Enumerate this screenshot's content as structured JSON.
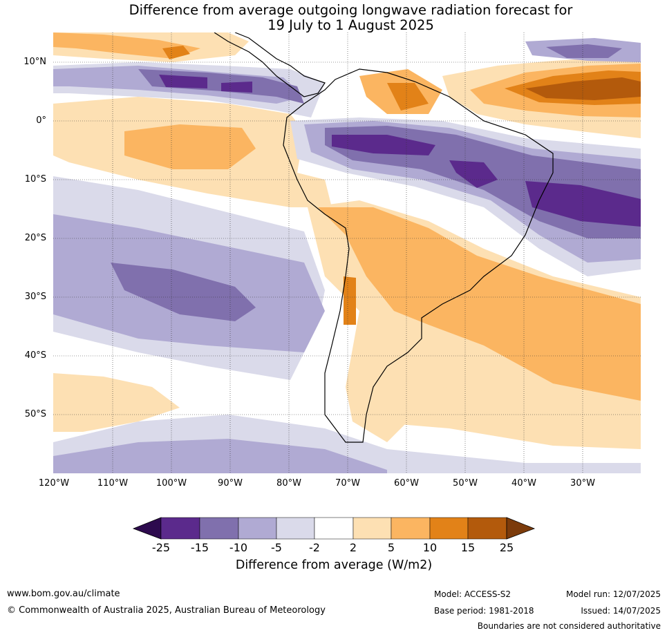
{
  "title": {
    "line1": "Difference from average outgoing longwave radiation forecast for",
    "line2": "19 July to 1 August 2025"
  },
  "map": {
    "lat_labels": [
      "10°N",
      "0°",
      "10°S",
      "20°S",
      "30°S",
      "40°S",
      "50°S"
    ],
    "lon_labels": [
      "120°W",
      "110°W",
      "100°W",
      "90°W",
      "80°W",
      "70°W",
      "60°W",
      "50°W",
      "40°W",
      "30°W"
    ]
  },
  "colorbar": {
    "ticks": [
      "-25",
      "-15",
      "-10",
      "-5",
      "-2",
      "2",
      "5",
      "10",
      "15",
      "25"
    ],
    "colors": [
      "#2d0a4e",
      "#5b2a8c",
      "#8070ad",
      "#b0aad3",
      "#dadaea",
      "#ffffff",
      "#fde0b3",
      "#fbb561",
      "#e28218",
      "#b35a0c",
      "#7c3b0b"
    ],
    "label": "Difference from average (W/m2)"
  },
  "footer": {
    "website": "www.bom.gov.au/climate",
    "copyright": "© Commonwealth of Australia 2025, Australian Bureau of Meteorology",
    "model": "Model: ACCESS-S2",
    "base_period": "Base period: 1981-2018",
    "model_run": "Model run: 12/07/2025",
    "issued": "Issued: 14/07/2025",
    "disclaimer": "Boundaries are not considered authoritative"
  }
}
